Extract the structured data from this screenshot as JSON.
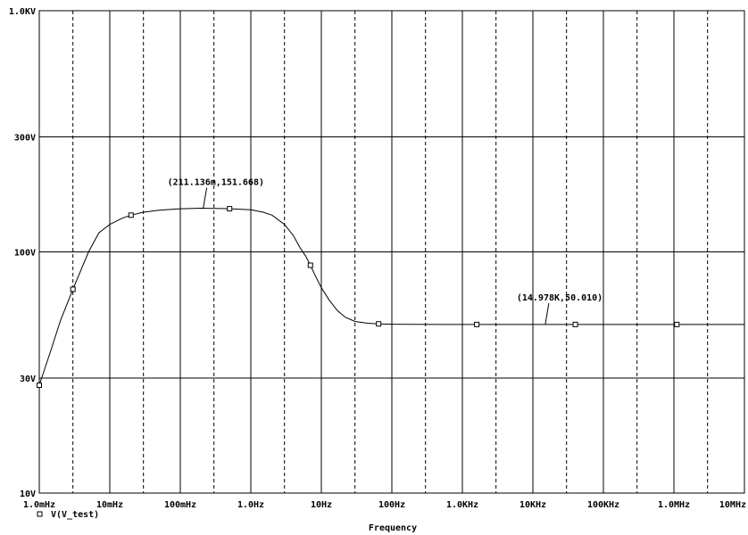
{
  "chart_data": {
    "type": "line",
    "xlabel": "Frequency",
    "x_scale": "log",
    "y_scale": "log",
    "xlim": [
      0.001,
      10000000
    ],
    "ylim": [
      10,
      1000
    ],
    "x_ticks": [
      {
        "value": 0.001,
        "label": "1.0mHz"
      },
      {
        "value": 0.01,
        "label": "10mHz"
      },
      {
        "value": 0.1,
        "label": "100mHz"
      },
      {
        "value": 1,
        "label": "1.0Hz"
      },
      {
        "value": 10,
        "label": "10Hz"
      },
      {
        "value": 100,
        "label": "100Hz"
      },
      {
        "value": 1000,
        "label": "1.0KHz"
      },
      {
        "value": 10000,
        "label": "10KHz"
      },
      {
        "value": 100000,
        "label": "100KHz"
      },
      {
        "value": 1000000,
        "label": "1.0MHz"
      },
      {
        "value": 10000000,
        "label": "10MHz"
      }
    ],
    "y_ticks": [
      {
        "value": 1000,
        "label": "1.0KV"
      },
      {
        "value": 300,
        "label": "300V"
      },
      {
        "value": 100,
        "label": "100V"
      },
      {
        "value": 30,
        "label": "30V"
      },
      {
        "value": 10,
        "label": "10V"
      }
    ],
    "grid": true,
    "series": [
      {
        "name": "V(V_test)",
        "marker": "square",
        "color": "#000000",
        "x": [
          0.001,
          0.0015,
          0.002,
          0.003,
          0.005,
          0.007,
          0.01,
          0.015,
          0.02,
          0.03,
          0.05,
          0.1,
          0.2,
          0.3,
          0.5,
          1,
          1.5,
          2,
          3,
          4,
          5,
          6,
          7,
          8,
          10,
          13,
          17,
          22,
          30,
          45,
          65,
          100,
          200,
          500,
          1000,
          10000,
          100000,
          1000000,
          10000000
        ],
        "y": [
          28,
          40,
          52,
          70,
          100,
          120,
          130,
          138,
          142,
          146,
          149,
          151,
          151.7,
          151.5,
          151,
          149.5,
          146,
          142,
          130,
          117,
          104,
          96,
          88,
          81,
          71,
          63,
          57,
          53.5,
          51.5,
          50.6,
          50.3,
          50.15,
          50.05,
          50.02,
          50.01,
          50.01,
          50.01,
          50.01,
          50.01
        ]
      }
    ],
    "markers": [
      {
        "x": 0.001,
        "y": 28
      },
      {
        "x": 0.003,
        "y": 70
      },
      {
        "x": 0.02,
        "y": 142
      },
      {
        "x": 0.5,
        "y": 151
      },
      {
        "x": 7,
        "y": 88
      },
      {
        "x": 65,
        "y": 50.3
      },
      {
        "x": 1600,
        "y": 50.01
      },
      {
        "x": 40000,
        "y": 50.01
      },
      {
        "x": 1100000,
        "y": 50.01
      }
    ],
    "annotations": [
      {
        "text": "(211.136m,151.668)",
        "x": 0.211136,
        "y": 151.668
      },
      {
        "text": "(14.978K,50.010)",
        "x": 14978,
        "y": 50.01
      }
    ],
    "legend": {
      "position": "bottom-left",
      "entries": [
        "V(V_test)"
      ]
    }
  }
}
